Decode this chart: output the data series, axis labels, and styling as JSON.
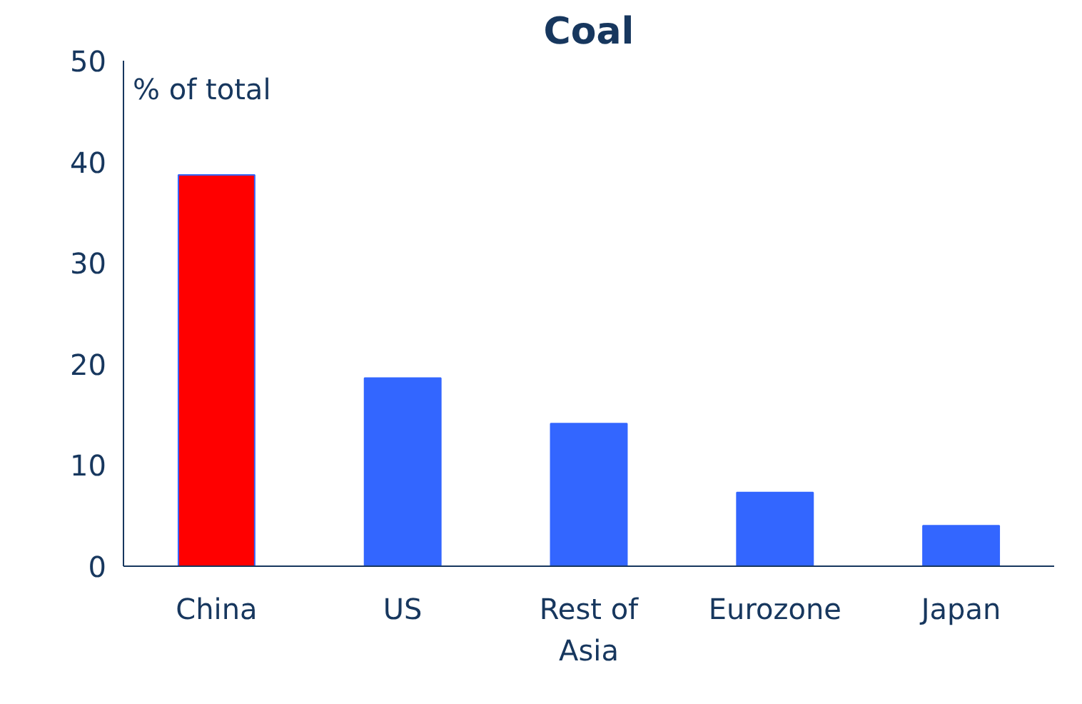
{
  "chart_data": {
    "type": "bar",
    "title": "Coal",
    "ylabel": "% of total",
    "categories": [
      "China",
      "US",
      "Rest of Asia",
      "Eurozone",
      "Japan"
    ],
    "values": [
      38.7,
      18.6,
      14.1,
      7.3,
      4.0
    ],
    "colors": [
      "#ff0000",
      "#3366ff",
      "#3366ff",
      "#3366ff",
      "#3366ff"
    ],
    "ylim": [
      0,
      50
    ],
    "yticks": [
      0,
      10,
      20,
      30,
      40,
      50
    ],
    "grid": false
  }
}
